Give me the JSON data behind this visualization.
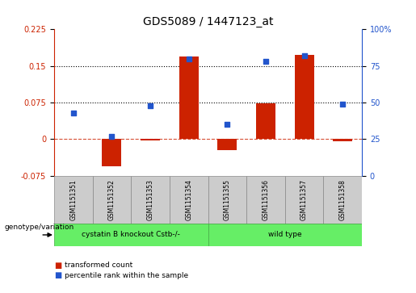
{
  "title": "GDS5089 / 1447123_at",
  "samples": [
    "GSM1151351",
    "GSM1151352",
    "GSM1151353",
    "GSM1151354",
    "GSM1151355",
    "GSM1151356",
    "GSM1151357",
    "GSM1151358"
  ],
  "transformed_count": [
    0.0,
    -0.055,
    -0.002,
    0.17,
    -0.022,
    0.073,
    0.172,
    -0.005
  ],
  "percentile_rank": [
    43,
    27,
    48,
    80,
    35,
    78,
    82,
    49
  ],
  "group1_label": "cystatin B knockout Cstb-/-",
  "group2_label": "wild type",
  "group1_indices": [
    0,
    1,
    2,
    3
  ],
  "group2_indices": [
    4,
    5,
    6,
    7
  ],
  "group_color": "#66ee66",
  "group_border_color": "#44aa44",
  "left_ylim": [
    -0.075,
    0.225
  ],
  "right_ylim": [
    0,
    100
  ],
  "left_yticks": [
    -0.075,
    0.0,
    0.075,
    0.15,
    0.225
  ],
  "right_yticks": [
    0,
    25,
    50,
    75,
    100
  ],
  "hlines": [
    0.075,
    0.15
  ],
  "bar_color": "#cc2200",
  "scatter_color": "#2255cc",
  "cell_bg": "#cccccc",
  "cell_border": "#888888",
  "legend_items": [
    {
      "label": "transformed count",
      "color": "#cc2200"
    },
    {
      "label": "percentile rank within the sample",
      "color": "#2255cc"
    }
  ],
  "genotype_label": "genotype/variation"
}
